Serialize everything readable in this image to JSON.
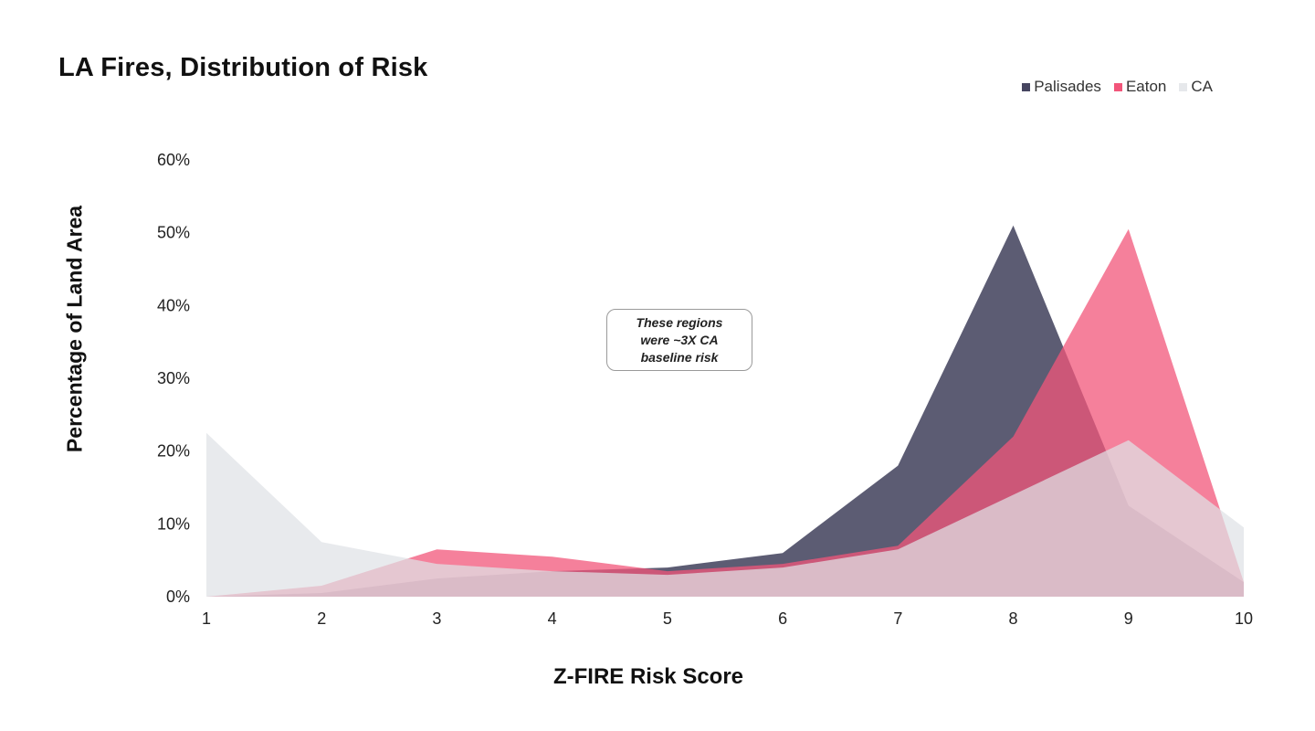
{
  "chart_data": {
    "type": "area",
    "title": "LA Fires, Distribution of Risk",
    "xlabel": "Z-FIRE Risk Score",
    "ylabel": "Percentage of Land Area",
    "x": [
      1,
      2,
      3,
      4,
      5,
      6,
      7,
      8,
      9,
      10
    ],
    "xlim": [
      1,
      10
    ],
    "ylim": [
      0,
      60
    ],
    "y_ticks": [
      "0%",
      "10%",
      "20%",
      "30%",
      "40%",
      "50%",
      "60%"
    ],
    "x_ticks": [
      "1",
      "2",
      "3",
      "4",
      "5",
      "6",
      "7",
      "8",
      "9",
      "10"
    ],
    "grid": false,
    "legend_position": "top-right",
    "series": [
      {
        "name": "Palisades",
        "color": "#464560",
        "values": [
          0,
          0.5,
          2.5,
          3.5,
          4,
          6,
          18,
          51,
          12.5,
          2
        ]
      },
      {
        "name": "Eaton",
        "color": "#f2557a",
        "values": [
          0,
          1.5,
          6.5,
          5.5,
          3.5,
          4.5,
          7,
          22,
          50.5,
          2
        ]
      },
      {
        "name": "CA",
        "color": "#dfe2e6",
        "values": [
          22.5,
          7.5,
          4.5,
          3.5,
          3,
          4,
          6.5,
          14,
          21.5,
          9.5
        ]
      }
    ],
    "annotation": "These regions were ~3X CA baseline risk"
  }
}
